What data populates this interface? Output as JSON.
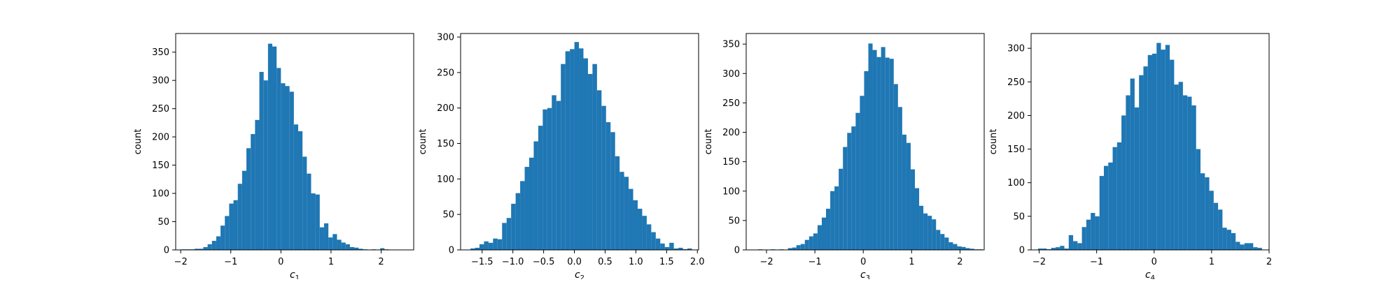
{
  "colors": {
    "bar": "#1f77b4",
    "axis": "#000000",
    "background": "#ffffff"
  },
  "chart_data": [
    {
      "type": "bar",
      "xlabel_base": "c",
      "xlabel_sub": "1",
      "ylabel": "count",
      "xlim": [
        -2.1,
        2.65
      ],
      "ylim": [
        0,
        383
      ],
      "xticks": [
        -2,
        -1,
        0,
        1,
        2
      ],
      "xtick_labels": [
        "−2",
        "−1",
        "0",
        "1",
        "2"
      ],
      "yticks": [
        0,
        50,
        100,
        150,
        200,
        250,
        300,
        350
      ],
      "bin_start": -1.98,
      "bin_width": 0.0861,
      "values": [
        1,
        1,
        1,
        2,
        2,
        5,
        10,
        16,
        24,
        43,
        60,
        82,
        88,
        117,
        140,
        180,
        205,
        230,
        315,
        300,
        365,
        360,
        322,
        295,
        290,
        280,
        222,
        210,
        165,
        135,
        100,
        98,
        40,
        47,
        22,
        28,
        18,
        13,
        10,
        5,
        4,
        2,
        1,
        0,
        1,
        0,
        3,
        1
      ]
    },
    {
      "type": "bar",
      "xlabel_base": "c",
      "xlabel_sub": "2",
      "ylabel": "count",
      "xlim": [
        -1.85,
        2.02
      ],
      "ylim": [
        0,
        305
      ],
      "xticks": [
        -1.5,
        -1.0,
        -0.5,
        0.0,
        0.5,
        1.0,
        1.5,
        2.0
      ],
      "xtick_labels": [
        "−1.5",
        "−1.0",
        "−0.5",
        "0.0",
        "0.5",
        "1.0",
        "1.5",
        "2.0"
      ],
      "yticks": [
        0,
        50,
        100,
        150,
        200,
        250,
        300
      ],
      "bin_start": -1.69,
      "bin_width": 0.0735,
      "values": [
        2,
        3,
        8,
        12,
        10,
        16,
        15,
        38,
        45,
        65,
        80,
        97,
        117,
        130,
        153,
        175,
        198,
        200,
        218,
        210,
        262,
        280,
        283,
        293,
        284,
        270,
        248,
        262,
        225,
        203,
        180,
        166,
        132,
        110,
        103,
        86,
        70,
        58,
        48,
        36,
        25,
        16,
        9,
        4,
        10,
        2,
        3,
        1,
        2
      ]
    },
    {
      "type": "bar",
      "xlabel_base": "c",
      "xlabel_sub": "3",
      "ylabel": "count",
      "xlim": [
        -2.42,
        2.5
      ],
      "ylim": [
        0,
        368
      ],
      "xticks": [
        -2,
        -1,
        0,
        1,
        2
      ],
      "xtick_labels": [
        "−2",
        "−1",
        "0",
        "1",
        "2"
      ],
      "yticks": [
        0,
        50,
        100,
        150,
        200,
        250,
        300,
        350
      ],
      "bin_start": -2.17,
      "bin_width": 0.0875,
      "values": [
        1,
        0,
        0,
        1,
        0,
        1,
        0,
        3,
        4,
        8,
        10,
        17,
        23,
        28,
        42,
        55,
        70,
        100,
        108,
        138,
        175,
        199,
        210,
        233,
        262,
        304,
        351,
        340,
        328,
        345,
        327,
        325,
        282,
        243,
        196,
        182,
        137,
        105,
        75,
        62,
        58,
        52,
        34,
        27,
        21,
        13,
        10,
        6,
        5,
        3,
        2,
        1,
        1
      ]
    },
    {
      "type": "bar",
      "xlabel_base": "c",
      "xlabel_sub": "4",
      "ylabel": "count",
      "xlim": [
        -2.14,
        2.0
      ],
      "ylim": [
        0,
        322
      ],
      "xticks": [
        -2,
        -1,
        0,
        1,
        2
      ],
      "xtick_labels": [
        "−2",
        "−1",
        "0",
        "1",
        "2"
      ],
      "yticks": [
        0,
        50,
        100,
        150,
        200,
        250,
        300
      ],
      "bin_start": -2.02,
      "bin_width": 0.0764,
      "values": [
        2,
        2,
        1,
        3,
        4,
        6,
        2,
        22,
        13,
        10,
        34,
        45,
        55,
        50,
        110,
        125,
        130,
        153,
        160,
        200,
        230,
        255,
        212,
        260,
        273,
        290,
        292,
        308,
        298,
        305,
        283,
        246,
        250,
        230,
        228,
        215,
        150,
        114,
        108,
        88,
        70,
        60,
        33,
        30,
        25,
        12,
        8,
        10,
        10,
        4,
        3
      ]
    }
  ]
}
